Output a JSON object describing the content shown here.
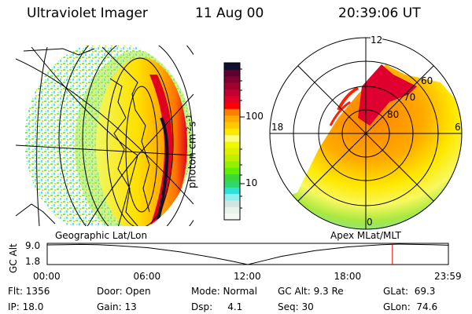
{
  "header": {
    "instrument": "Ultraviolet Imager",
    "date": "11 Aug 00",
    "time": "20:39:06 UT"
  },
  "colorbar": {
    "label": "photon cm",
    "label_sup1": "-2",
    "label_mid": "s",
    "label_sup2": "-1",
    "scale": "log",
    "ticks": [
      "100",
      "10"
    ],
    "colors": [
      "#f4f9f4",
      "#e8f3ec",
      "#d3e4e2",
      "#8eeef0",
      "#2ee0d8",
      "#2ed86a",
      "#3cd83a",
      "#5ef000",
      "#94f000",
      "#c0f000",
      "#dcf000",
      "#f0f800",
      "#fcfc80",
      "#ffe800",
      "#ffc800",
      "#ffaa00",
      "#ff8000",
      "#ff0000",
      "#e0002a",
      "#c00030",
      "#a00030",
      "#800030",
      "#600030",
      "#101030"
    ]
  },
  "geo_panel": {
    "label": "Geographic Lat/Lon"
  },
  "polar_panel": {
    "label": "Apex MLat/MLT",
    "mlt_labels": [
      "12",
      "18",
      "6",
      "0"
    ],
    "lat_labels": [
      "80",
      "70",
      "60"
    ]
  },
  "altitude_plot": {
    "ylabel": "GC Alt",
    "yticks": [
      "9.0",
      "1.8"
    ],
    "xticks": [
      "00:00",
      "06:00",
      "12:00",
      "18:00",
      "23:59"
    ],
    "current_time_hours": 20.65,
    "marker_color": "#e00000",
    "points": [
      [
        0,
        9.0
      ],
      [
        1,
        9.1
      ],
      [
        2,
        9.2
      ],
      [
        3,
        9.1
      ],
      [
        4,
        8.8
      ],
      [
        6,
        8.0
      ],
      [
        8,
        6.4
      ],
      [
        10,
        4.3
      ],
      [
        11,
        3.1
      ],
      [
        12,
        1.8
      ],
      [
        13,
        3.3
      ],
      [
        14,
        4.8
      ],
      [
        16,
        6.9
      ],
      [
        18,
        8.3
      ],
      [
        20,
        9.1
      ],
      [
        21,
        9.3
      ],
      [
        22,
        9.2
      ],
      [
        23,
        9.1
      ],
      [
        24,
        8.9
      ]
    ]
  },
  "info": {
    "row1": [
      "Flt: 1356",
      "Door: Open",
      "Mode: Normal",
      "GC Alt: 9.3 Re",
      "GLat:  69.3"
    ],
    "row2": [
      "IP: 18.0",
      "Gain: 13",
      "Dsp:     4.1",
      "Seq: 30",
      "GLon:  74.6"
    ]
  }
}
